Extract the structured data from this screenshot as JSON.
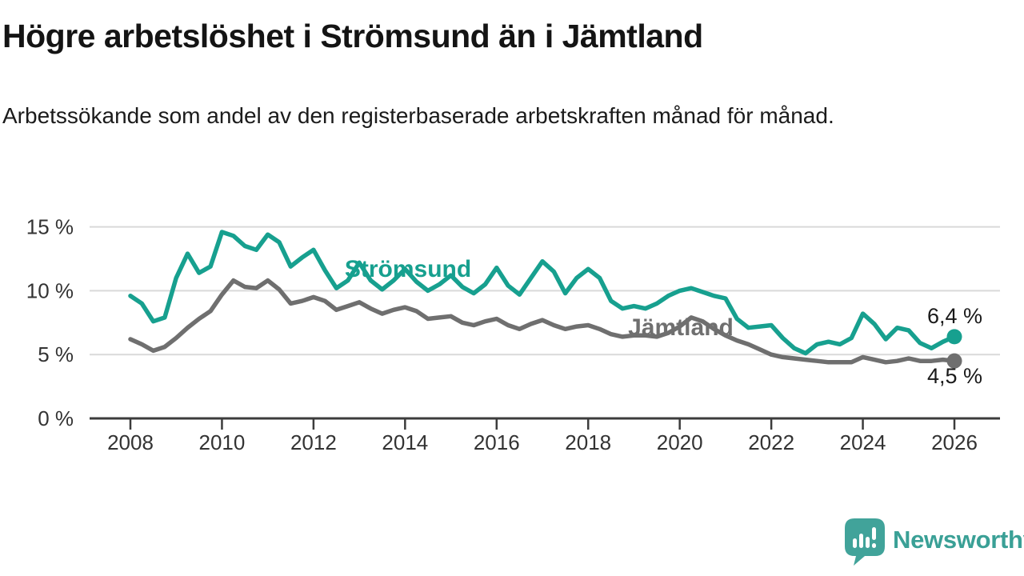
{
  "header": {
    "title": "Högre arbetslöshet i Strömsund än i Jämtland",
    "subtitle": "Arbetssökande som andel av den registerbaserade arbetskraften månad för månad."
  },
  "chart_data": {
    "type": "line",
    "title": "Högre arbetslöshet i Strömsund än i Jämtland",
    "subtitle": "Arbetssökande som andel av den registerbaserade arbetskraften månad för månad.",
    "xlabel": "",
    "ylabel": "",
    "unit": "%",
    "grid": "horizontal",
    "legend_position": "inline-labels",
    "xlim": [
      2007.1,
      2027.0
    ],
    "ylim": [
      0,
      16.5
    ],
    "x_ticks": [
      2008,
      2010,
      2012,
      2014,
      2016,
      2018,
      2020,
      2022,
      2024,
      2026
    ],
    "y_ticks": [
      {
        "value": 0,
        "label": "0 %"
      },
      {
        "value": 5,
        "label": "5 %"
      },
      {
        "value": 10,
        "label": "10 %"
      },
      {
        "value": 15,
        "label": "15 %"
      }
    ],
    "x": [
      2008,
      2008.25,
      2008.5,
      2008.75,
      2009,
      2009.25,
      2009.5,
      2009.75,
      2010,
      2010.25,
      2010.5,
      2010.75,
      2011,
      2011.25,
      2011.5,
      2011.75,
      2012,
      2012.25,
      2012.5,
      2012.75,
      2013,
      2013.25,
      2013.5,
      2013.75,
      2014,
      2014.25,
      2014.5,
      2014.75,
      2015,
      2015.25,
      2015.5,
      2015.75,
      2016,
      2016.25,
      2016.5,
      2016.75,
      2017,
      2017.25,
      2017.5,
      2017.75,
      2018,
      2018.25,
      2018.5,
      2018.75,
      2019,
      2019.25,
      2019.5,
      2019.75,
      2020,
      2020.25,
      2020.5,
      2020.75,
      2021,
      2021.25,
      2021.5,
      2021.75,
      2022,
      2022.25,
      2022.5,
      2022.75,
      2023,
      2023.25,
      2023.5,
      2023.75,
      2024,
      2024.25,
      2024.5,
      2024.75,
      2025,
      2025.25,
      2025.5,
      2025.75,
      2026
    ],
    "series": [
      {
        "name": "Strömsund",
        "color": "#17a08f",
        "end_label": "6,4 %",
        "end_value": 6.4,
        "values": [
          9.6,
          9.0,
          7.6,
          7.9,
          11.0,
          12.9,
          11.4,
          11.9,
          14.6,
          14.3,
          13.5,
          13.2,
          14.4,
          13.8,
          11.9,
          12.6,
          13.2,
          11.6,
          10.2,
          10.8,
          12.2,
          10.8,
          10.1,
          10.8,
          11.7,
          10.7,
          10.0,
          10.5,
          11.2,
          10.3,
          9.8,
          10.5,
          11.8,
          10.4,
          9.7,
          11.0,
          12.3,
          11.5,
          9.8,
          11.0,
          11.7,
          11.0,
          9.2,
          8.6,
          8.8,
          8.6,
          9.0,
          9.6,
          10.0,
          10.2,
          9.9,
          9.6,
          9.4,
          7.8,
          7.1,
          7.2,
          7.3,
          6.3,
          5.5,
          5.1,
          5.8,
          6.0,
          5.8,
          6.3,
          8.2,
          7.4,
          6.2,
          7.1,
          6.9,
          5.9,
          5.5,
          6.0,
          6.4
        ]
      },
      {
        "name": "Jämtland",
        "color": "#6f6f6f",
        "end_label": "4,5 %",
        "end_value": 4.5,
        "values": [
          6.2,
          5.8,
          5.3,
          5.6,
          6.3,
          7.1,
          7.8,
          8.4,
          9.7,
          10.8,
          10.3,
          10.2,
          10.8,
          10.1,
          9.0,
          9.2,
          9.5,
          9.2,
          8.5,
          8.8,
          9.1,
          8.6,
          8.2,
          8.5,
          8.7,
          8.4,
          7.8,
          7.9,
          8.0,
          7.5,
          7.3,
          7.6,
          7.8,
          7.3,
          7.0,
          7.4,
          7.7,
          7.3,
          7.0,
          7.2,
          7.3,
          7.0,
          6.6,
          6.4,
          6.5,
          6.5,
          6.4,
          6.7,
          7.2,
          7.9,
          7.6,
          7.0,
          6.5,
          6.1,
          5.8,
          5.4,
          5.0,
          4.8,
          4.7,
          4.6,
          4.5,
          4.4,
          4.4,
          4.4,
          4.8,
          4.6,
          4.4,
          4.5,
          4.7,
          4.5,
          4.5,
          4.6,
          4.5
        ]
      }
    ],
    "colors": {
      "grid": "#d9d9d9",
      "axis": "#3c3c3c",
      "tick_text": "#333333",
      "value_text": "#1a1a1a"
    }
  },
  "footer": {
    "brand": "Newsworthy",
    "brand_color": "#3aa096"
  }
}
